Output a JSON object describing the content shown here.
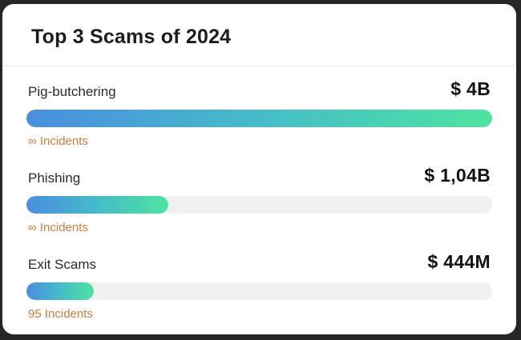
{
  "card": {
    "title": "Top 3 Scams of 2024"
  },
  "chart_data": {
    "type": "bar",
    "orientation": "horizontal",
    "title": "Top 3 Scams of 2024",
    "categories": [
      "Pig-butchering",
      "Phishing",
      "Exit Scams"
    ],
    "value_labels": [
      "$ 4B",
      "$ 1,04B",
      "$ 444M"
    ],
    "incident_labels": [
      "∞ Incidents",
      "∞  Incidents",
      "95 Incidents"
    ],
    "bar_fill_percent": [
      100,
      30.4,
      14.5
    ],
    "colors": {
      "bar_gradient_start": "#4a8edf",
      "bar_gradient_mid": "#45bcc9",
      "bar_gradient_end": "#4fe3a1",
      "bar_track": "#f0f0f1",
      "incidents_text": "#d07b3c",
      "title_text": "#1d1d1f",
      "value_text": "#121212",
      "card_background": "#ffffff",
      "page_background": "#262626"
    }
  },
  "rows": [
    {
      "label": "Pig-butchering",
      "value": "$ 4B",
      "incidents": "∞ Incidents",
      "fill_pct": 100
    },
    {
      "label": "Phishing",
      "value": "$ 1,04B",
      "incidents": "∞  Incidents",
      "fill_pct": 30.4
    },
    {
      "label": "Exit Scams",
      "value": "$ 444M",
      "incidents": "95 Incidents",
      "fill_pct": 14.5
    }
  ]
}
